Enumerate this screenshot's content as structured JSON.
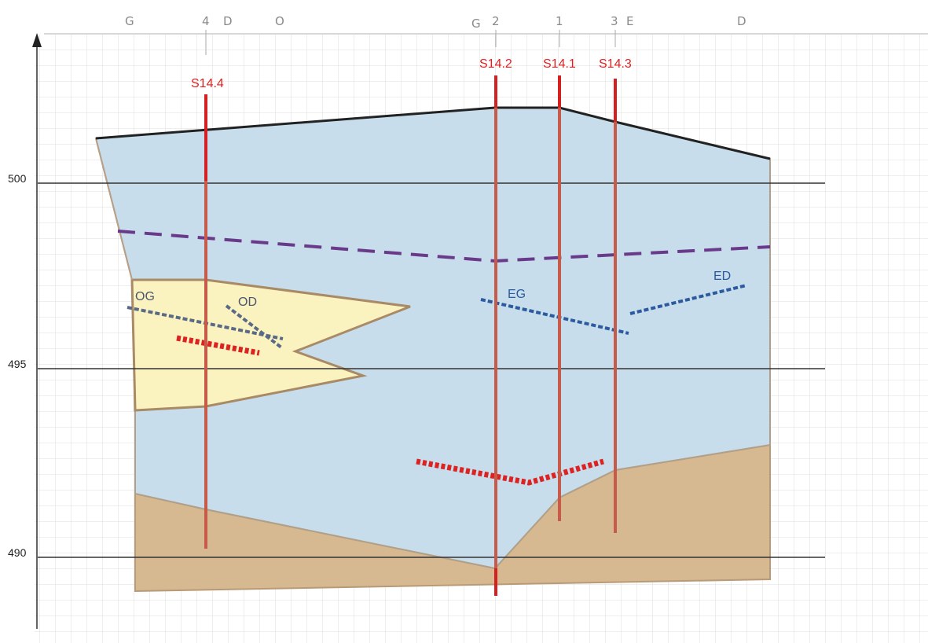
{
  "colors": {
    "grid": "#d6d6d6",
    "water": "#c8ddeb",
    "sand": "#fbf3bf",
    "clay": "#d6b891",
    "outline": "#9a8064",
    "top_line": "#222222",
    "borehole": "#c85a4a",
    "borehole_top": "#d42020",
    "purple_dash": "#6a3a8a",
    "blue_dash": "#2c5a9e",
    "grey_dash": "#5a6a86",
    "red_dots": "#dd2222",
    "label_red": "#e02020",
    "label_blue": "#2c5a9e",
    "label_grey": "#4a5570"
  },
  "elevation_labels": [
    {
      "id": "elev-500",
      "text": "500"
    },
    {
      "id": "elev-495",
      "text": "495"
    },
    {
      "id": "elev-490",
      "text": "490"
    }
  ],
  "boreholes": [
    {
      "id": "s14-4",
      "label": "S14.4"
    },
    {
      "id": "s14-2",
      "label": "S14.2"
    },
    {
      "id": "s14-1",
      "label": "S14.1"
    },
    {
      "id": "s14-3",
      "label": "S14.3"
    }
  ],
  "top_marks": [
    "G",
    "4",
    "D",
    "O",
    "G",
    "2",
    "1",
    "3",
    "E",
    "D"
  ],
  "zone_labels": {
    "og": "OG",
    "od": "OD",
    "eg": "EG",
    "ed": "ED"
  }
}
